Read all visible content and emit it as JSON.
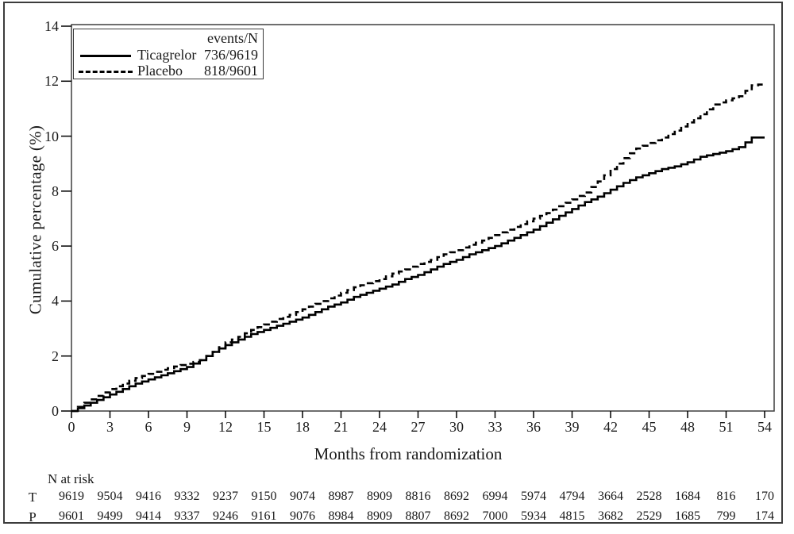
{
  "figure": {
    "y_axis_title": "Cumulative percentage (%)",
    "x_axis_title": "Months from randomization"
  },
  "legend": {
    "header": "events/N",
    "items": [
      {
        "label": "Ticagrelor",
        "events_n": "736/9619",
        "line_style": "solid"
      },
      {
        "label": "Placebo",
        "events_n": "818/9601",
        "line_style": "dashed"
      }
    ]
  },
  "chart_data": {
    "type": "line",
    "step": true,
    "title": "",
    "xlabel": "Months from randomization",
    "ylabel": "Cumulative percentage (%)",
    "xlim": [
      0,
      54
    ],
    "ylim": [
      0,
      14
    ],
    "x_ticks": [
      0,
      3,
      6,
      9,
      12,
      15,
      18,
      21,
      24,
      27,
      30,
      33,
      36,
      39,
      42,
      45,
      48,
      51,
      54
    ],
    "y_ticks": [
      0,
      2,
      4,
      6,
      8,
      10,
      12,
      14
    ],
    "grid": false,
    "legend_position": "top-left",
    "x": [
      0,
      1,
      2,
      3,
      4,
      5,
      6,
      7,
      8,
      9,
      10,
      11,
      12,
      13,
      14,
      15,
      16,
      17,
      18,
      19,
      20,
      21,
      22,
      23,
      24,
      25,
      26,
      27,
      28,
      29,
      30,
      31,
      32,
      33,
      34,
      35,
      36,
      37,
      38,
      39,
      40,
      41,
      42,
      43,
      44,
      45,
      46,
      47,
      48,
      49,
      50,
      51,
      52,
      53,
      54
    ],
    "series": [
      {
        "name": "Ticagrelor",
        "style": "solid",
        "color": "#000000",
        "events_n": "736/9619",
        "values": [
          0,
          0.2,
          0.4,
          0.6,
          0.8,
          1.0,
          1.15,
          1.3,
          1.45,
          1.6,
          1.85,
          2.15,
          2.4,
          2.6,
          2.8,
          2.95,
          3.1,
          3.25,
          3.4,
          3.6,
          3.8,
          3.95,
          4.15,
          4.3,
          4.45,
          4.6,
          4.8,
          4.95,
          5.15,
          5.35,
          5.5,
          5.7,
          5.85,
          6.0,
          6.2,
          6.4,
          6.6,
          6.85,
          7.1,
          7.35,
          7.6,
          7.8,
          8.05,
          8.3,
          8.5,
          8.65,
          8.8,
          8.9,
          9.05,
          9.25,
          9.35,
          9.45,
          9.6,
          9.95,
          9.95
        ]
      },
      {
        "name": "Placebo",
        "style": "dashed",
        "color": "#000000",
        "events_n": "818/9601",
        "values": [
          0,
          0.3,
          0.55,
          0.8,
          1.0,
          1.2,
          1.35,
          1.5,
          1.62,
          1.72,
          1.85,
          2.15,
          2.5,
          2.7,
          2.95,
          3.15,
          3.35,
          3.5,
          3.7,
          3.9,
          4.1,
          4.3,
          4.5,
          4.65,
          4.8,
          5.0,
          5.15,
          5.35,
          5.5,
          5.7,
          5.85,
          6.05,
          6.2,
          6.4,
          6.6,
          6.8,
          7.0,
          7.2,
          7.45,
          7.7,
          7.95,
          8.35,
          8.8,
          9.2,
          9.55,
          9.75,
          9.95,
          10.2,
          10.5,
          10.8,
          11.15,
          11.3,
          11.45,
          11.85,
          11.9
        ]
      }
    ]
  },
  "n_at_risk": {
    "title": "N at risk",
    "timepoints": [
      0,
      3,
      6,
      9,
      12,
      15,
      18,
      21,
      24,
      27,
      30,
      33,
      36,
      39,
      42,
      45,
      48,
      51,
      54
    ],
    "rows": [
      {
        "label": "T",
        "counts": [
          9619,
          9504,
          9416,
          9332,
          9237,
          9150,
          9074,
          8987,
          8909,
          8816,
          8692,
          6994,
          5974,
          4794,
          3664,
          2528,
          1684,
          816,
          170
        ]
      },
      {
        "label": "P",
        "counts": [
          9601,
          9499,
          9414,
          9337,
          9246,
          9161,
          9076,
          8984,
          8909,
          8807,
          8692,
          7000,
          5934,
          4815,
          3682,
          2529,
          1685,
          799,
          174
        ]
      }
    ]
  },
  "colors": {
    "curve": "#000000",
    "frame": "#3f3f3f",
    "text": "#1a1a1a"
  }
}
